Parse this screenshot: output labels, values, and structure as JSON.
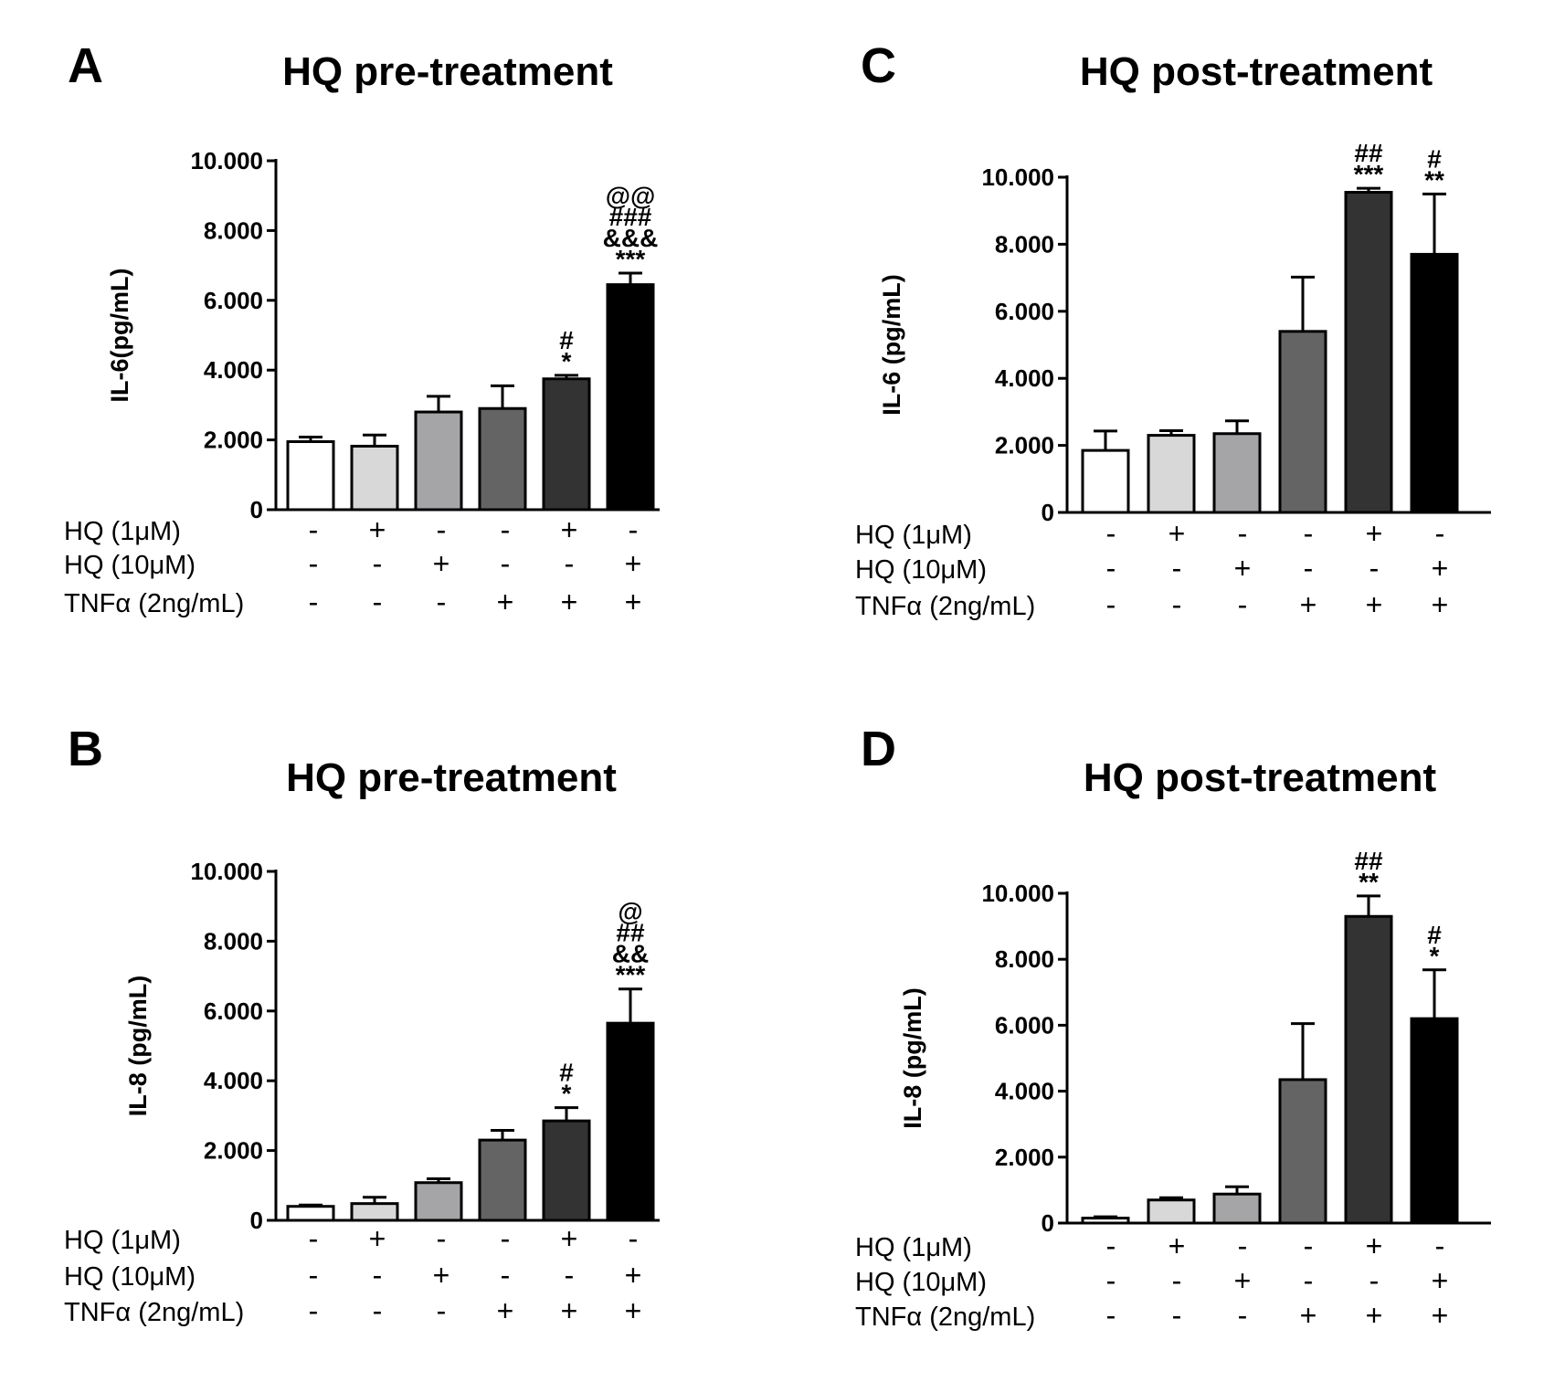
{
  "chart_data": [
    {
      "panel": "A",
      "type": "bar",
      "title": "HQ pre-treatment",
      "ylabel": "IL-6(pg/mL)",
      "xlabel": "",
      "ylim": [
        0,
        10000
      ],
      "yticks": [
        "0",
        "2.000",
        "4.000",
        "6.000",
        "8.000",
        "10.000"
      ],
      "bars": [
        {
          "value": 1950,
          "error": 130,
          "color": "#ffffff",
          "sig": []
        },
        {
          "value": 1820,
          "error": 320,
          "color": "#d8d8d8",
          "sig": []
        },
        {
          "value": 2800,
          "error": 450,
          "color": "#a5a5a8",
          "sig": []
        },
        {
          "value": 2900,
          "error": 650,
          "color": "#646464",
          "sig": []
        },
        {
          "value": 3750,
          "error": 100,
          "color": "#333333",
          "sig": [
            "*",
            "#"
          ]
        },
        {
          "value": 6450,
          "error": 330,
          "color": "#000000",
          "sig": [
            "***",
            "&&&",
            "###",
            "@@"
          ]
        }
      ],
      "conditions": [
        {
          "label": "HQ (1μM)",
          "signs": [
            "-",
            "+",
            "-",
            "-",
            "+",
            "-"
          ]
        },
        {
          "label": "HQ (10μM)",
          "signs": [
            "-",
            "-",
            "+",
            "-",
            "-",
            "+"
          ]
        },
        {
          "label": "TNFα (2ng/mL)",
          "signs": [
            "-",
            "-",
            "-",
            "+",
            "+",
            "+"
          ]
        }
      ]
    },
    {
      "panel": "B",
      "type": "bar",
      "title": "HQ pre-treatment",
      "ylabel": "IL-8 (pg/mL)",
      "xlabel": "",
      "ylim": [
        0,
        10000
      ],
      "yticks": [
        "0",
        "2.000",
        "4.000",
        "6.000",
        "8.000",
        "10.000"
      ],
      "bars": [
        {
          "value": 400,
          "error": 40,
          "color": "#ffffff",
          "sig": []
        },
        {
          "value": 480,
          "error": 180,
          "color": "#d8d8d8",
          "sig": []
        },
        {
          "value": 1080,
          "error": 110,
          "color": "#a5a5a8",
          "sig": []
        },
        {
          "value": 2300,
          "error": 280,
          "color": "#646464",
          "sig": []
        },
        {
          "value": 2850,
          "error": 380,
          "color": "#333333",
          "sig": [
            "*",
            "#"
          ]
        },
        {
          "value": 5650,
          "error": 980,
          "color": "#000000",
          "sig": [
            "***",
            "&&",
            "##",
            "@"
          ]
        }
      ],
      "conditions": [
        {
          "label": "HQ (1μM)",
          "signs": [
            "-",
            "+",
            "-",
            "-",
            "+",
            "-"
          ]
        },
        {
          "label": "HQ (10μM)",
          "signs": [
            "-",
            "-",
            "+",
            "-",
            "-",
            "+"
          ]
        },
        {
          "label": "TNFα (2ng/mL)",
          "signs": [
            "-",
            "-",
            "-",
            "+",
            "+",
            "+"
          ]
        }
      ]
    },
    {
      "panel": "C",
      "type": "bar",
      "title": "HQ post-treatment",
      "ylabel": "IL-6 (pg/mL)",
      "xlabel": "",
      "ylim": [
        0,
        10000
      ],
      "yticks": [
        "0",
        "2.000",
        "4.000",
        "6.000",
        "8.000",
        "10.000"
      ],
      "bars": [
        {
          "value": 1850,
          "error": 580,
          "color": "#ffffff",
          "sig": []
        },
        {
          "value": 2300,
          "error": 140,
          "color": "#d8d8d8",
          "sig": []
        },
        {
          "value": 2350,
          "error": 380,
          "color": "#a5a5a8",
          "sig": []
        },
        {
          "value": 5400,
          "error": 1620,
          "color": "#646464",
          "sig": []
        },
        {
          "value": 9550,
          "error": 120,
          "color": "#333333",
          "sig": [
            "***",
            "##"
          ]
        },
        {
          "value": 7700,
          "error": 1800,
          "color": "#000000",
          "sig": [
            "**",
            "#"
          ]
        }
      ],
      "conditions": [
        {
          "label": "HQ (1μM)",
          "signs": [
            "-",
            "+",
            "-",
            "-",
            "+",
            "-"
          ]
        },
        {
          "label": "HQ (10μM)",
          "signs": [
            "-",
            "-",
            "+",
            "-",
            "-",
            "+"
          ]
        },
        {
          "label": "TNFα (2ng/mL)",
          "signs": [
            "-",
            "-",
            "-",
            "+",
            "+",
            "+"
          ]
        }
      ]
    },
    {
      "panel": "D",
      "type": "bar",
      "title": "HQ post-treatment",
      "ylabel": "IL-8 (pg/mL)",
      "xlabel": "",
      "ylim": [
        0,
        10000
      ],
      "yticks": [
        "0",
        "2.000",
        "4.000",
        "6.000",
        "8.000",
        "10.000"
      ],
      "bars": [
        {
          "value": 150,
          "error": 40,
          "color": "#ffffff",
          "sig": []
        },
        {
          "value": 700,
          "error": 70,
          "color": "#d8d8d8",
          "sig": []
        },
        {
          "value": 880,
          "error": 220,
          "color": "#a5a5a8",
          "sig": []
        },
        {
          "value": 4350,
          "error": 1700,
          "color": "#646464",
          "sig": []
        },
        {
          "value": 9300,
          "error": 620,
          "color": "#333333",
          "sig": [
            "**",
            "##"
          ]
        },
        {
          "value": 6200,
          "error": 1480,
          "color": "#000000",
          "sig": [
            "*",
            "#"
          ]
        }
      ],
      "conditions": [
        {
          "label": "HQ (1μM)",
          "signs": [
            "-",
            "+",
            "-",
            "-",
            "+",
            "-"
          ]
        },
        {
          "label": "HQ (10μM)",
          "signs": [
            "-",
            "-",
            "+",
            "-",
            "-",
            "+"
          ]
        },
        {
          "label": "TNFα (2ng/mL)",
          "signs": [
            "-",
            "-",
            "-",
            "+",
            "+",
            "+"
          ]
        }
      ]
    }
  ]
}
